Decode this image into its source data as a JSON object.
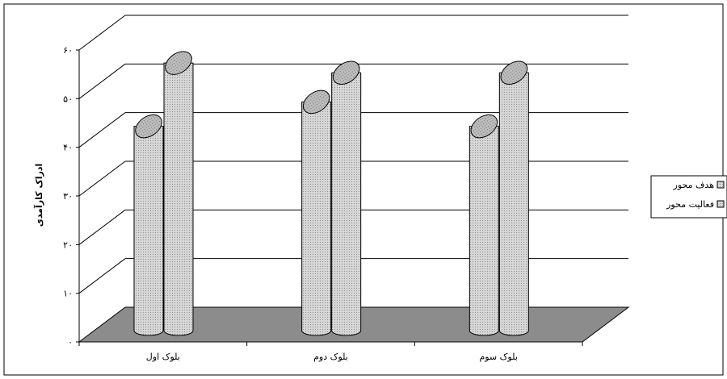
{
  "chart_data": {
    "type": "bar",
    "title": "",
    "xlabel": "",
    "ylabel": "ادراک کارآمدی",
    "ylim": [
      0,
      60
    ],
    "yticks": [
      "۰",
      "۱۰",
      "۲۰",
      "۳۰",
      "۴۰",
      "۵۰",
      "۶۰"
    ],
    "categories": [
      "بلوک اول",
      "بلوک دوم",
      "بلوک سوم"
    ],
    "series": [
      {
        "name": "هدف محور",
        "values": [
          42,
          47,
          42
        ]
      },
      {
        "name": "فعالیت محور",
        "values": [
          55,
          53,
          53
        ]
      }
    ],
    "legend_position": "right",
    "grid": true,
    "style": {
      "bar_fill": "#d0d0d0",
      "floor_fill": "#8c8c8c",
      "axis_color": "#000000"
    }
  }
}
